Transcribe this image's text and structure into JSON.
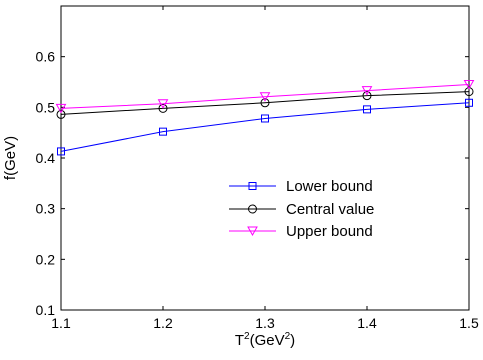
{
  "chart_data": {
    "type": "line",
    "x": [
      1.1,
      1.2,
      1.3,
      1.4,
      1.5
    ],
    "series": [
      {
        "name": "Lower bound",
        "values": [
          0.413,
          0.452,
          0.478,
          0.496,
          0.509
        ],
        "color": "#0000ff",
        "marker": "square"
      },
      {
        "name": "Central value",
        "values": [
          0.486,
          0.498,
          0.509,
          0.523,
          0.531
        ],
        "color": "#000000",
        "marker": "circle"
      },
      {
        "name": "Upper bound",
        "values": [
          0.498,
          0.507,
          0.521,
          0.533,
          0.545
        ],
        "color": "#ff00ff",
        "marker": "triangle-down"
      }
    ],
    "xlabel": "T",
    "xlabel_sup1": "2",
    "xlabel_unit": "(GeV",
    "xlabel_sup2": "2",
    "xlabel_close": ")",
    "ylabel": "f(GeV)",
    "xlim": [
      1.1,
      1.5
    ],
    "ylim": [
      0.1,
      0.7
    ],
    "xticks": [
      "1.1",
      "1.2",
      "1.3",
      "1.4",
      "1.5"
    ],
    "yticks": [
      "0.1",
      "0.2",
      "0.3",
      "0.4",
      "0.5",
      "0.6"
    ],
    "grid": false,
    "legend_position": "center-right"
  }
}
